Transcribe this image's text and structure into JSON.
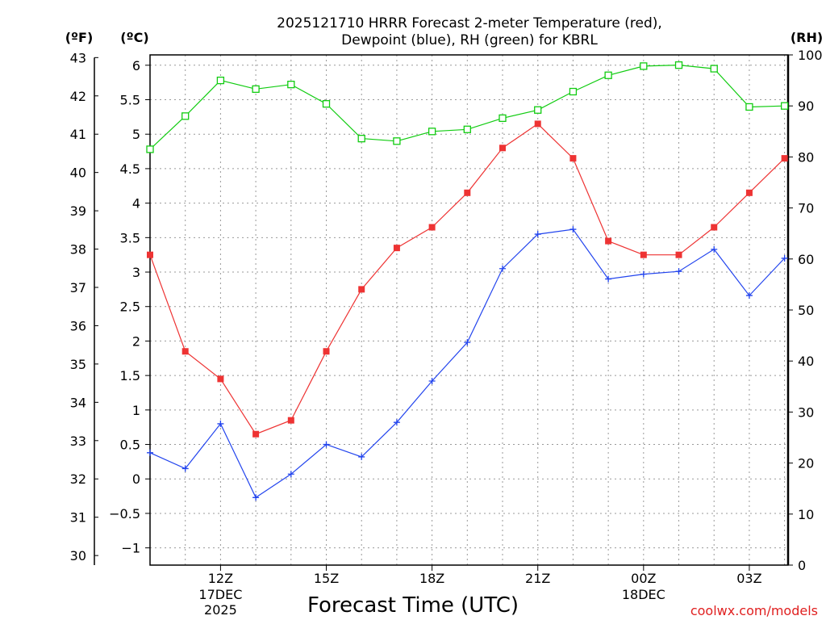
{
  "colors": {
    "temperature": "#ee3333",
    "dewpoint": "#2244ee",
    "rh": "#11cc11",
    "grid": "#999999"
  },
  "chart_data": {
    "type": "line",
    "title_line1": "2025121710 HRRR Forecast 2-meter Temperature (red),",
    "title_line2": "Dewpoint (blue), RH (green) for KBRL",
    "xlabel": "Forecast Time (UTC)",
    "credit": "coolwx.com/models",
    "units": {
      "fahrenheit": "(ºF)",
      "celsius": "(ºC)",
      "rh": "(RH)"
    },
    "x_hours": [
      10,
      11,
      12,
      13,
      14,
      15,
      16,
      17,
      18,
      19,
      20,
      21,
      22,
      23,
      24,
      25,
      26,
      27,
      28
    ],
    "xlim": [
      10,
      28.1
    ],
    "x_ticks": [
      {
        "hour": 12,
        "label": "12Z",
        "sub1": "17DEC",
        "sub2": "2025"
      },
      {
        "hour": 15,
        "label": "15Z",
        "sub1": "",
        "sub2": ""
      },
      {
        "hour": 18,
        "label": "18Z",
        "sub1": "",
        "sub2": ""
      },
      {
        "hour": 21,
        "label": "21Z",
        "sub1": "",
        "sub2": ""
      },
      {
        "hour": 24,
        "label": "00Z",
        "sub1": "18DEC",
        "sub2": ""
      },
      {
        "hour": 27,
        "label": "03Z",
        "sub1": "",
        "sub2": ""
      }
    ],
    "celsius_axis": {
      "range": [
        -1.25,
        6.15
      ],
      "ticks": [
        -1,
        -0.5,
        0,
        0.5,
        1,
        1.5,
        2,
        2.5,
        3,
        3.5,
        4,
        4.5,
        5,
        5.5,
        6
      ]
    },
    "fahrenheit_axis": {
      "ticks": [
        30,
        31,
        32,
        33,
        34,
        35,
        36,
        37,
        38,
        39,
        40,
        41,
        42,
        43
      ]
    },
    "rh_axis": {
      "range": [
        0,
        100
      ],
      "ticks": [
        0,
        10,
        20,
        30,
        40,
        50,
        60,
        70,
        80,
        90,
        100
      ]
    },
    "series": [
      {
        "name": "Temperature",
        "axis": "celsius",
        "marker": "filled-square",
        "values": [
          3.25,
          1.85,
          1.45,
          0.65,
          0.85,
          1.85,
          2.75,
          3.35,
          3.65,
          4.15,
          4.8,
          5.15,
          4.65,
          3.45,
          3.25,
          3.25,
          3.65,
          4.15,
          4.65
        ]
      },
      {
        "name": "Dewpoint",
        "axis": "celsius",
        "marker": "plus",
        "values": [
          0.38,
          0.15,
          0.8,
          -0.27,
          0.07,
          0.5,
          0.32,
          0.82,
          1.42,
          1.98,
          3.05,
          3.55,
          3.62,
          2.9,
          2.97,
          3.01,
          3.33,
          2.66,
          3.2
        ]
      },
      {
        "name": "RH",
        "axis": "rh",
        "marker": "open-square",
        "values": [
          81.5,
          88,
          95,
          93.3,
          94.2,
          90.4,
          83.6,
          83.1,
          85,
          85.4,
          87.6,
          89.2,
          92.8,
          96,
          97.8,
          98,
          97.3,
          89.8,
          90
        ]
      }
    ]
  }
}
